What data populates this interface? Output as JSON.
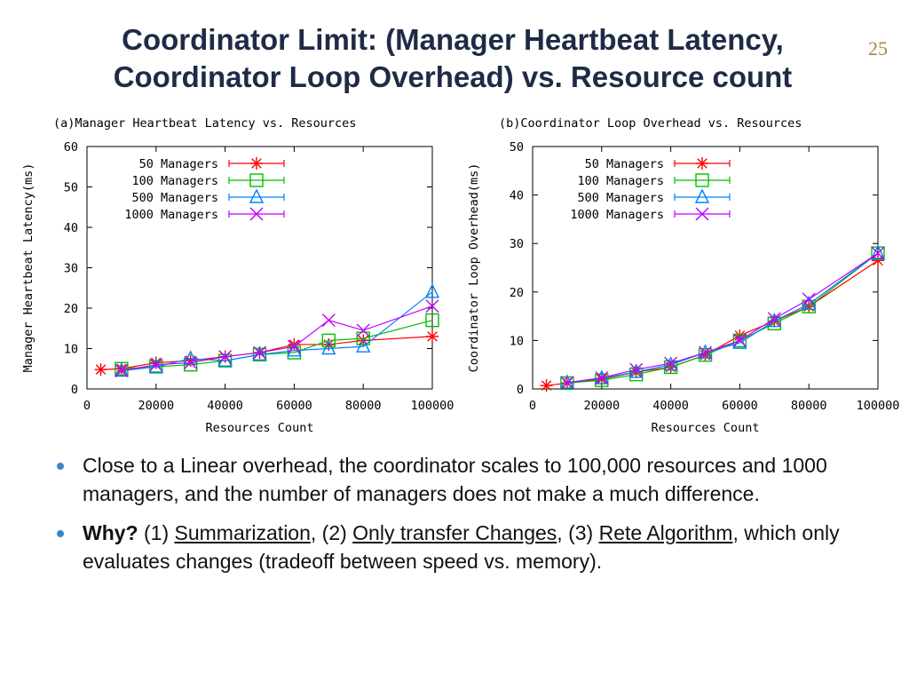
{
  "slide": {
    "title_line1": "Coordinator Limit: (Manager Heartbeat Latency,",
    "title_line2": "Coordinator Loop Overhead) vs. Resource count",
    "number": "25"
  },
  "colors": {
    "50": "#ff0000",
    "100": "#00c000",
    "500": "#0080ff",
    "1000": "#c000ff"
  },
  "chart_data": [
    {
      "type": "line",
      "title": "(a)Manager Heartbeat Latency vs. Resources",
      "xlabel": "Resources Count",
      "ylabel": "Manager Heartbeat Latency(ms)",
      "xlim": [
        0,
        100000
      ],
      "ylim": [
        0,
        60
      ],
      "xticks": [
        0,
        20000,
        40000,
        60000,
        80000,
        100000
      ],
      "yticks": [
        0,
        10,
        20,
        30,
        40,
        50,
        60
      ],
      "grid": false,
      "legend": "top-left",
      "series": [
        {
          "name": "50 Managers",
          "color": "#ff0000",
          "marker": "star",
          "x": [
            4000,
            10000,
            20000,
            30000,
            40000,
            50000,
            60000,
            70000,
            80000,
            100000
          ],
          "y": [
            4.8,
            5,
            6.5,
            7,
            8,
            9,
            11,
            11,
            12,
            13
          ]
        },
        {
          "name": "100 Managers",
          "color": "#00c000",
          "marker": "square",
          "x": [
            10000,
            20000,
            30000,
            40000,
            50000,
            60000,
            70000,
            80000,
            100000
          ],
          "y": [
            5,
            5.5,
            6,
            7,
            8.5,
            9,
            12,
            12.5,
            17
          ]
        },
        {
          "name": "500 Managers",
          "color": "#0080ff",
          "marker": "triangle",
          "x": [
            10000,
            20000,
            30000,
            40000,
            50000,
            60000,
            70000,
            80000,
            100000
          ],
          "y": [
            4.5,
            5.5,
            7.5,
            7,
            8.5,
            9.5,
            10,
            10.5,
            24
          ]
        },
        {
          "name": "1000 Managers",
          "color": "#c000ff",
          "marker": "x",
          "x": [
            10000,
            20000,
            30000,
            40000,
            50000,
            60000,
            70000,
            80000,
            100000
          ],
          "y": [
            4.5,
            6,
            6.5,
            8,
            9,
            10.5,
            17,
            14.5,
            20.5
          ]
        }
      ]
    },
    {
      "type": "line",
      "title": "(b)Coordinator Loop Overhead vs. Resources",
      "xlabel": "Resources Count",
      "ylabel": "Coordinator Loop Overhead(ms)",
      "xlim": [
        0,
        100000
      ],
      "ylim": [
        0,
        50
      ],
      "xticks": [
        0,
        20000,
        40000,
        60000,
        80000,
        100000
      ],
      "yticks": [
        0,
        10,
        20,
        30,
        40,
        50
      ],
      "grid": false,
      "legend": "top-left",
      "series": [
        {
          "name": "50 Managers",
          "color": "#ff0000",
          "marker": "star",
          "x": [
            4000,
            10000,
            20000,
            30000,
            40000,
            50000,
            60000,
            70000,
            80000,
            100000
          ],
          "y": [
            0.7,
            1.2,
            2,
            3.5,
            4.5,
            7,
            11,
            14,
            17,
            26.5
          ]
        },
        {
          "name": "100 Managers",
          "color": "#00c000",
          "marker": "square",
          "x": [
            10000,
            20000,
            30000,
            40000,
            50000,
            60000,
            70000,
            80000,
            100000
          ],
          "y": [
            1.2,
            1.8,
            3,
            4.5,
            7,
            10,
            13.5,
            17,
            28
          ]
        },
        {
          "name": "500 Managers",
          "color": "#0080ff",
          "marker": "triangle",
          "x": [
            10000,
            20000,
            30000,
            40000,
            50000,
            60000,
            70000,
            80000,
            100000
          ],
          "y": [
            1.3,
            2.2,
            3.5,
            5,
            7.5,
            9.5,
            14,
            17.5,
            28
          ]
        },
        {
          "name": "1000 Managers",
          "color": "#c000ff",
          "marker": "x",
          "x": [
            10000,
            20000,
            30000,
            40000,
            50000,
            60000,
            70000,
            80000,
            100000
          ],
          "y": [
            1.3,
            2.3,
            4,
            5.3,
            7.5,
            10,
            14.5,
            18.5,
            28
          ]
        }
      ]
    }
  ],
  "bullets": {
    "b1": "Close to a Linear overhead, the coordinator scales to 100,000 resources and 1000 managers, and the number of managers does not make a much difference.",
    "b2_why": "Why?",
    "b2_t1": " (1) ",
    "b2_summ": "Summarization",
    "b2_t2": ", (2) ",
    "b2_only": "Only transfer Changes",
    "b2_t3": ", (3) ",
    "b2_rete": "Rete Algorithm",
    "b2_t4": ", which only evaluates changes (tradeoff between speed vs. memory)."
  }
}
